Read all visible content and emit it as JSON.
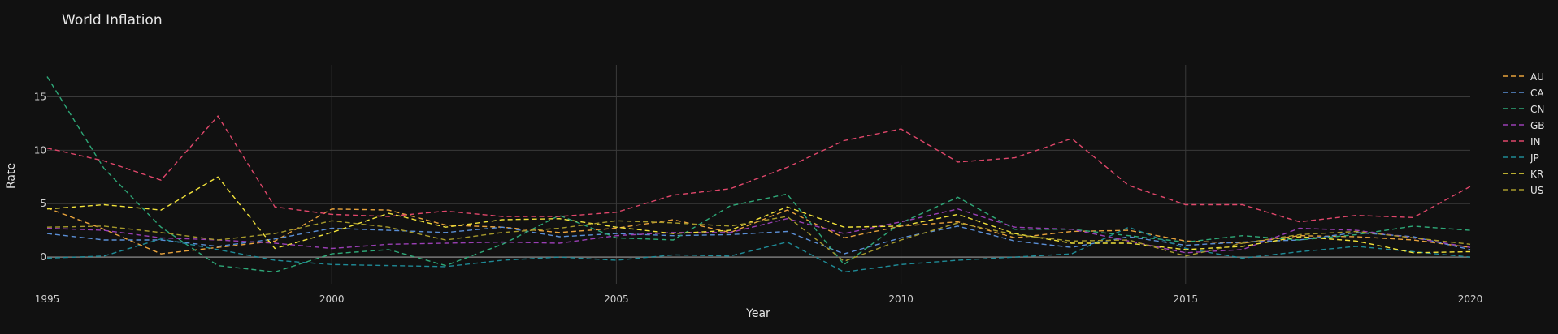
{
  "chart_data": {
    "type": "line",
    "title": "World Inflation",
    "xlabel": "Year",
    "ylabel": "Rate",
    "xlim": [
      1995,
      2020
    ],
    "ylim": [
      -2.5,
      18
    ],
    "x_ticks": [
      1995,
      2000,
      2005,
      2010,
      2015,
      2020
    ],
    "y_ticks": [
      0,
      5,
      10,
      15
    ],
    "grid": true,
    "legend_position": "right",
    "x": [
      1995,
      1996,
      1997,
      1998,
      1999,
      2000,
      2001,
      2002,
      2003,
      2004,
      2005,
      2006,
      2007,
      2008,
      2009,
      2010,
      2011,
      2012,
      2013,
      2014,
      2015,
      2016,
      2017,
      2018,
      2019,
      2020
    ],
    "series": [
      {
        "name": "AU",
        "color": "#e8a33c",
        "values": [
          4.6,
          2.6,
          0.3,
          0.9,
          1.5,
          4.5,
          4.4,
          3.0,
          2.8,
          2.3,
          2.7,
          3.5,
          2.3,
          4.4,
          1.8,
          2.9,
          3.3,
          1.8,
          2.4,
          2.5,
          1.5,
          1.3,
          2.0,
          1.9,
          1.6,
          0.9
        ]
      },
      {
        "name": "CA",
        "color": "#5b8fd6",
        "values": [
          2.2,
          1.6,
          1.6,
          1.0,
          1.7,
          2.7,
          2.5,
          2.3,
          2.8,
          1.9,
          2.2,
          2.0,
          2.1,
          2.4,
          0.3,
          1.8,
          2.9,
          1.5,
          0.9,
          1.9,
          1.1,
          1.4,
          1.6,
          2.3,
          1.9,
          0.7
        ]
      },
      {
        "name": "CN",
        "color": "#2ea878",
        "values": [
          16.9,
          8.3,
          2.8,
          -0.8,
          -1.4,
          0.3,
          0.7,
          -0.8,
          1.2,
          3.9,
          1.8,
          1.6,
          4.8,
          5.9,
          -0.7,
          3.2,
          5.6,
          2.6,
          2.6,
          2.0,
          1.4,
          2.0,
          1.6,
          2.1,
          2.9,
          2.5
        ]
      },
      {
        "name": "GB",
        "color": "#9a3fb5",
        "values": [
          2.7,
          2.5,
          1.8,
          1.6,
          1.3,
          0.8,
          1.2,
          1.3,
          1.4,
          1.3,
          2.0,
          2.3,
          2.3,
          3.6,
          2.2,
          3.3,
          4.5,
          2.8,
          2.6,
          1.5,
          0.4,
          0.7,
          2.7,
          2.5,
          1.8,
          0.9
        ]
      },
      {
        "name": "IN",
        "color": "#e0476b",
        "values": [
          10.2,
          9.0,
          7.2,
          13.2,
          4.7,
          4.0,
          3.8,
          4.3,
          3.8,
          3.8,
          4.2,
          5.8,
          6.4,
          8.4,
          10.9,
          12.0,
          8.9,
          9.3,
          11.1,
          6.7,
          4.9,
          4.9,
          3.3,
          3.9,
          3.7,
          6.6
        ]
      },
      {
        "name": "JP",
        "color": "#1f8a96",
        "values": [
          -0.1,
          0.1,
          1.7,
          0.7,
          -0.3,
          -0.7,
          -0.8,
          -0.9,
          -0.3,
          0.0,
          -0.3,
          0.2,
          0.1,
          1.4,
          -1.4,
          -0.7,
          -0.3,
          0.0,
          0.3,
          2.8,
          0.8,
          -0.1,
          0.5,
          1.0,
          0.5,
          0.0
        ]
      },
      {
        "name": "KR",
        "color": "#f2e23a",
        "values": [
          4.5,
          4.9,
          4.4,
          7.5,
          0.8,
          2.3,
          4.1,
          2.8,
          3.5,
          3.6,
          2.8,
          2.2,
          2.5,
          4.7,
          2.8,
          2.9,
          4.0,
          2.2,
          1.3,
          1.3,
          0.7,
          1.0,
          1.9,
          1.5,
          0.4,
          0.5
        ]
      },
      {
        "name": "US",
        "color": "#a79a2c",
        "values": [
          2.8,
          2.9,
          2.3,
          1.6,
          2.2,
          3.4,
          2.8,
          1.6,
          2.3,
          2.7,
          3.4,
          3.2,
          2.9,
          3.8,
          -0.4,
          1.6,
          3.2,
          2.1,
          1.5,
          1.6,
          0.1,
          1.3,
          2.1,
          2.4,
          1.8,
          1.2
        ]
      }
    ]
  }
}
